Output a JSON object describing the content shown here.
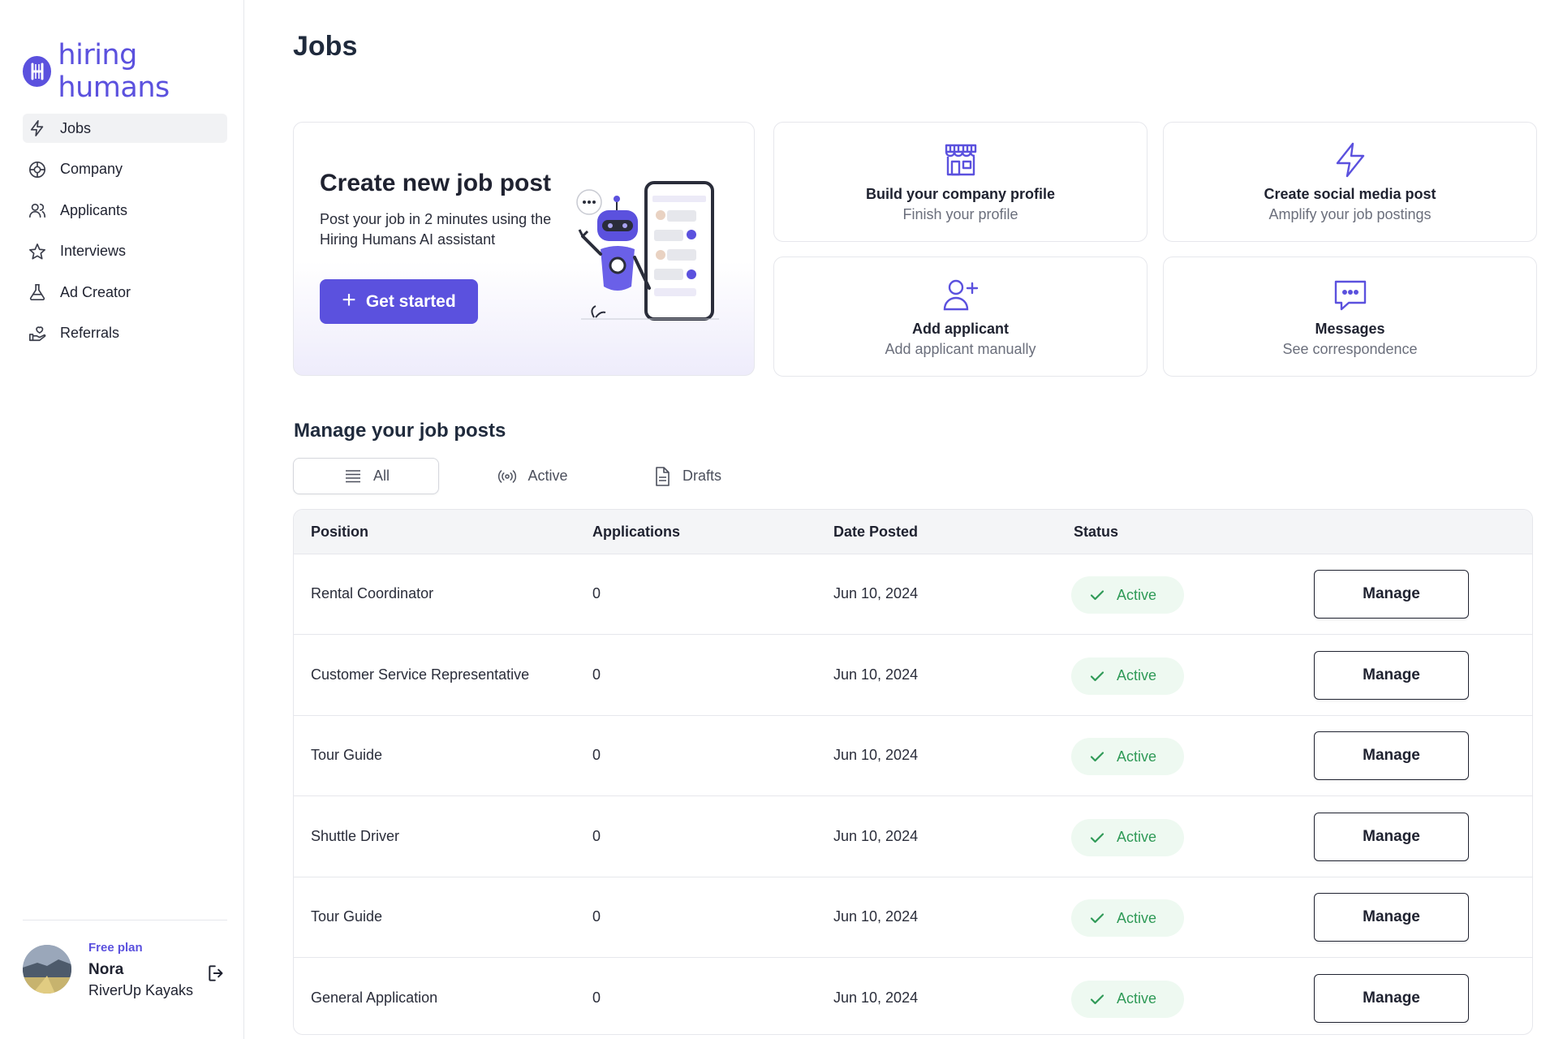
{
  "brand": {
    "name": "hiring humans",
    "color": "#5b51de"
  },
  "sidebar": {
    "items": [
      {
        "label": "Jobs",
        "icon": "lightning-icon",
        "active": true
      },
      {
        "label": "Company",
        "icon": "company-icon",
        "active": false
      },
      {
        "label": "Applicants",
        "icon": "users-icon",
        "active": false
      },
      {
        "label": "Interviews",
        "icon": "star-icon",
        "active": false
      },
      {
        "label": "Ad Creator",
        "icon": "flask-icon",
        "active": false
      },
      {
        "label": "Referrals",
        "icon": "hand-heart-icon",
        "active": false
      }
    ],
    "user": {
      "plan": "Free plan",
      "name": "Nora",
      "company": "RiverUp Kayaks"
    }
  },
  "page": {
    "title": "Jobs"
  },
  "hero": {
    "title": "Create new job post",
    "description": "Post your job in 2 minutes using the Hiring Humans AI assistant",
    "cta_label": "Get started"
  },
  "cards": [
    {
      "title": "Build your company profile",
      "subtitle": "Finish your profile",
      "icon": "storefront-icon"
    },
    {
      "title": "Create social media post",
      "subtitle": "Amplify your job postings",
      "icon": "lightning-icon"
    },
    {
      "title": "Add applicant",
      "subtitle": "Add applicant manually",
      "icon": "add-user-icon"
    },
    {
      "title": "Messages",
      "subtitle": "See correspondence",
      "icon": "chat-icon"
    }
  ],
  "manage": {
    "title": "Manage your job posts",
    "tabs": [
      {
        "label": "All",
        "icon": "list-icon",
        "selected": true
      },
      {
        "label": "Active",
        "icon": "broadcast-icon",
        "selected": false
      },
      {
        "label": "Drafts",
        "icon": "document-icon",
        "selected": false
      }
    ],
    "columns": [
      "Position",
      "Applications",
      "Date Posted",
      "Status"
    ],
    "rows": [
      {
        "position": "Rental Coordinator",
        "applications": "0",
        "date": "Jun 10, 2024",
        "status": "Active",
        "action": "Manage"
      },
      {
        "position": "Customer Service Representative",
        "applications": "0",
        "date": "Jun 10, 2024",
        "status": "Active",
        "action": "Manage"
      },
      {
        "position": "Tour Guide",
        "applications": "0",
        "date": "Jun 10, 2024",
        "status": "Active",
        "action": "Manage"
      },
      {
        "position": "Shuttle Driver",
        "applications": "0",
        "date": "Jun 10, 2024",
        "status": "Active",
        "action": "Manage"
      },
      {
        "position": "Tour Guide",
        "applications": "0",
        "date": "Jun 10, 2024",
        "status": "Active",
        "action": "Manage"
      },
      {
        "position": "General Application",
        "applications": "0",
        "date": "Jun 10, 2024",
        "status": "Active",
        "action": "Manage"
      }
    ]
  },
  "colors": {
    "accent": "#5b51de",
    "active_green": "#2f9a57",
    "active_bg": "#eef9f1"
  }
}
